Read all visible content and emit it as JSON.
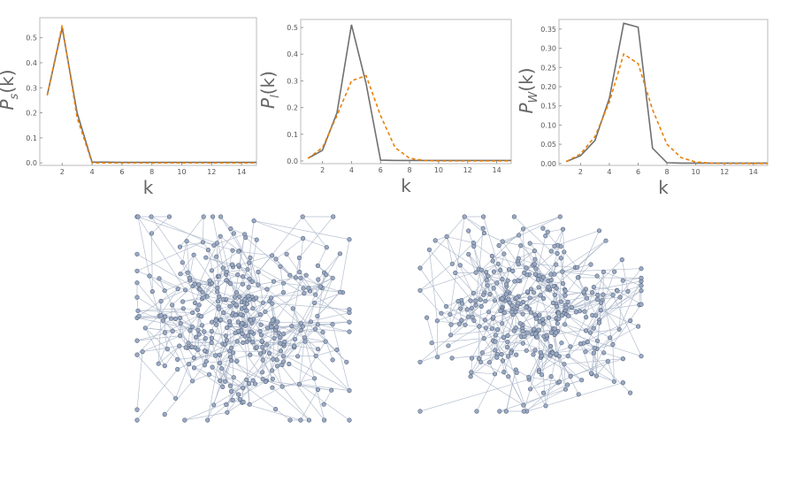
{
  "chart_data": [
    {
      "type": "line",
      "ylabel_main": "P",
      "ylabel_sub": "s",
      "ylabel_tail": "(k)",
      "xlabel": "k",
      "xlim": [
        0.5,
        15
      ],
      "ylim": [
        -0.01,
        0.58
      ],
      "xticks": [
        2,
        4,
        6,
        8,
        10,
        12,
        14
      ],
      "yticks": [
        0.0,
        0.1,
        0.2,
        0.3,
        0.4,
        0.5
      ],
      "ytick_labels": [
        "0.0",
        "0.1",
        "0.2",
        "0.3",
        "0.4",
        "0.5"
      ],
      "x": [
        1,
        2,
        3,
        4,
        5,
        6,
        7,
        8,
        9,
        10,
        11,
        12,
        13,
        14,
        15
      ],
      "series": [
        {
          "style": "solid-gray",
          "values": [
            0.27,
            0.54,
            0.2,
            0.003,
            0.003,
            0.002,
            0.002,
            0.002,
            0.002,
            0.002,
            0.002,
            0.002,
            0.002,
            0.002,
            0.002
          ]
        },
        {
          "style": "dashed-orange",
          "values": [
            0.27,
            0.55,
            0.18,
            0.0,
            0.0,
            0.0,
            0.0,
            0.0,
            0.0,
            0.0,
            0.0,
            0.0,
            0.0,
            0.0,
            0.0
          ]
        }
      ]
    },
    {
      "type": "line",
      "ylabel_main": "P",
      "ylabel_sub": "l",
      "ylabel_tail": "(k)",
      "xlabel": "k",
      "xlim": [
        0.5,
        15
      ],
      "ylim": [
        -0.01,
        0.53
      ],
      "xticks": [
        2,
        4,
        6,
        8,
        10,
        12,
        14
      ],
      "yticks": [
        0.0,
        0.1,
        0.2,
        0.3,
        0.4,
        0.5
      ],
      "ytick_labels": [
        "0.0",
        "0.1",
        "0.2",
        "0.3",
        "0.4",
        "0.5"
      ],
      "x": [
        1,
        2,
        3,
        4,
        5,
        6,
        7,
        8,
        9,
        10,
        11,
        12,
        13,
        14,
        15
      ],
      "series": [
        {
          "style": "solid-gray",
          "values": [
            0.01,
            0.04,
            0.18,
            0.51,
            0.29,
            0.003,
            0.002,
            0.002,
            0.002,
            0.002,
            0.002,
            0.002,
            0.002,
            0.002,
            0.002
          ]
        },
        {
          "style": "dashed-orange",
          "values": [
            0.01,
            0.05,
            0.17,
            0.3,
            0.32,
            0.17,
            0.05,
            0.01,
            0.002,
            0.0,
            0.0,
            0.0,
            0.0,
            0.0,
            0.0
          ]
        }
      ]
    },
    {
      "type": "line",
      "ylabel_main": "P",
      "ylabel_sub": "W",
      "ylabel_tail": "(k)",
      "xlabel": "k",
      "xlim": [
        0.5,
        15
      ],
      "ylim": [
        -0.005,
        0.375
      ],
      "xticks": [
        2,
        4,
        6,
        8,
        10,
        12,
        14
      ],
      "yticks": [
        0.0,
        0.05,
        0.1,
        0.15,
        0.2,
        0.25,
        0.3,
        0.35
      ],
      "ytick_labels": [
        "0.00",
        "0.05",
        "0.10",
        "0.15",
        "0.20",
        "0.25",
        "0.30",
        "0.35"
      ],
      "x": [
        1,
        2,
        3,
        4,
        5,
        6,
        7,
        8,
        9,
        10,
        11,
        12,
        13,
        14,
        15
      ],
      "series": [
        {
          "style": "solid-gray",
          "values": [
            0.005,
            0.02,
            0.06,
            0.17,
            0.365,
            0.355,
            0.04,
            0.002,
            0.001,
            0.001,
            0.001,
            0.001,
            0.001,
            0.001,
            0.001
          ]
        },
        {
          "style": "dashed-orange",
          "values": [
            0.005,
            0.025,
            0.07,
            0.16,
            0.285,
            0.26,
            0.14,
            0.05,
            0.015,
            0.004,
            0.001,
            0.0,
            0.0,
            0.0,
            0.0
          ]
        }
      ]
    }
  ],
  "networks": [
    {
      "node_count": 380,
      "seed": 7
    },
    {
      "node_count": 380,
      "seed": 19
    }
  ]
}
